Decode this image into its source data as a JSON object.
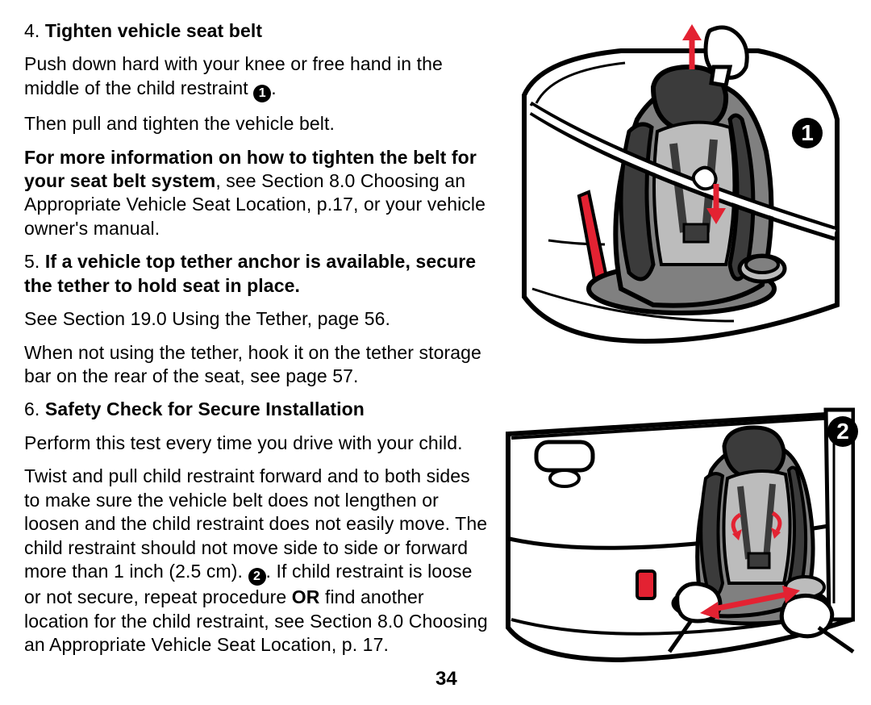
{
  "page_number": "34",
  "callouts": {
    "one": "1",
    "two": "2"
  },
  "colors": {
    "accent": "#e32232",
    "black": "#000000",
    "white": "#ffffff",
    "grey_mid": "#808080",
    "grey_light": "#bcbcbc",
    "grey_dark": "#3b3b3b"
  },
  "blocks": [
    {
      "parts": [
        {
          "text": "4. ",
          "bold": false
        },
        {
          "text": "Tighten vehicle seat belt",
          "bold": true
        }
      ]
    },
    {
      "parts": [
        {
          "text": "Push down hard with your knee or free hand in the middle of the child restraint "
        },
        {
          "circ": "1"
        },
        {
          "text": "."
        }
      ]
    },
    {
      "parts": [
        {
          "text": "Then pull and tighten the vehicle belt."
        }
      ]
    },
    {
      "parts": [
        {
          "text": "For more information on how to tighten the belt for your seat belt system",
          "bold": true
        },
        {
          "text": ", see Section 8.0 Choosing an Appropriate Vehicle Seat Location, p.17, or your vehicle owner's manual."
        }
      ]
    },
    {
      "parts": [
        {
          "text": "5. "
        },
        {
          "text": "If a vehicle top tether anchor is available, secure the tether to hold seat in place.",
          "bold": true
        }
      ]
    },
    {
      "parts": [
        {
          "text": "See Section 19.0 Using the Tether, page 56."
        }
      ]
    },
    {
      "parts": [
        {
          "text": "When not using the tether, hook it on the tether storage bar on the rear of the seat, see page 57."
        }
      ]
    },
    {
      "parts": [
        {
          "text": "6. "
        },
        {
          "text": "Safety Check for Secure Installation",
          "bold": true
        }
      ]
    },
    {
      "parts": [
        {
          "text": "Perform this test every time you drive with your child."
        }
      ]
    },
    {
      "parts": [
        {
          "text": "Twist and pull child restraint forward and to both sides to make sure the vehicle belt does not lengthen or loosen and the child restraint does not easily move. The child restraint should not move side to side or forward more than 1 inch (2.5 cm). "
        },
        {
          "circ": "2"
        },
        {
          "text": ". If child restraint is loose or not secure, repeat procedure "
        },
        {
          "text": "OR",
          "bold": true
        },
        {
          "text": " find another location for the child restraint, see Section 8.0 Choosing an Appropriate Vehicle Seat Location, p. 17."
        }
      ]
    }
  ]
}
